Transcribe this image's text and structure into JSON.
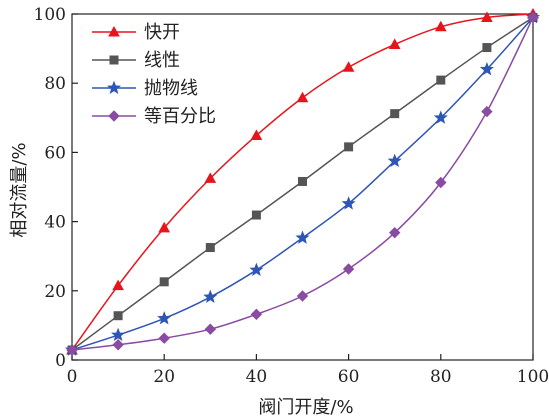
{
  "chart_data": {
    "type": "line",
    "xlabel": "阀门开度/%",
    "ylabel": "相对流量/%",
    "xlim": [
      0,
      100
    ],
    "ylim": [
      0,
      100
    ],
    "xticks": [
      0,
      20,
      40,
      60,
      80,
      100
    ],
    "yticks": [
      0,
      20,
      40,
      60,
      80,
      100
    ],
    "grid": false,
    "legend_position": "top-left",
    "x": [
      0,
      10,
      20,
      30,
      40,
      50,
      60,
      70,
      80,
      90,
      100
    ],
    "series": [
      {
        "name": "快开",
        "color": "#e8141b",
        "marker": "triangle",
        "values": [
          2.9,
          21.5,
          38.2,
          52.5,
          64.9,
          75.8,
          84.6,
          91.2,
          96.3,
          99,
          100
        ]
      },
      {
        "name": "线性",
        "color": "#555555",
        "marker": "square",
        "values": [
          2.9,
          12.8,
          22.6,
          32.5,
          41.9,
          51.6,
          61.6,
          71.2,
          80.9,
          90.3,
          99
        ]
      },
      {
        "name": "抛物线",
        "color": "#2f56b4",
        "marker": "star",
        "values": [
          2.9,
          7.2,
          12,
          18.2,
          26,
          35.3,
          45.2,
          57.5,
          70,
          84,
          99
        ]
      },
      {
        "name": "等百分比",
        "color": "#8a4ba3",
        "marker": "diamond",
        "values": [
          2.9,
          4.4,
          6.3,
          8.9,
          13.2,
          18.5,
          26.3,
          36.8,
          51.3,
          71.8,
          99
        ]
      }
    ]
  }
}
